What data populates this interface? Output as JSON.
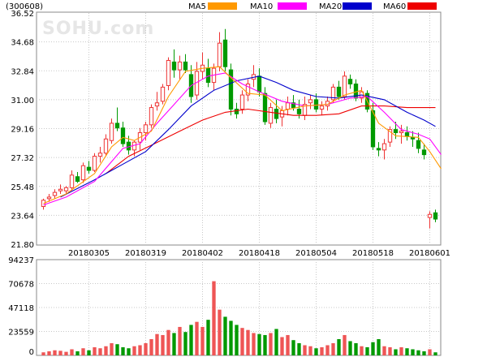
{
  "header": {
    "code": "(300608)",
    "legend": [
      {
        "label": "MA5",
        "color": "#ff9900"
      },
      {
        "label": "MA10",
        "color": "#ff00ff"
      },
      {
        "label": "MA20",
        "color": "#0000cc"
      },
      {
        "label": "MA60",
        "color": "#ee0000"
      }
    ]
  },
  "watermark": "SOHU.com",
  "chart_data": {
    "type": "candlestick",
    "grid": true,
    "price_axis": {
      "ylim": [
        21.8,
        36.52
      ],
      "ticks": [
        {
          "label": "36.52",
          "value": 36.52
        },
        {
          "label": "34.68",
          "value": 34.68
        },
        {
          "label": "32.84",
          "value": 32.84
        },
        {
          "label": "31.00",
          "value": 31.0
        },
        {
          "label": "29.16",
          "value": 29.16
        },
        {
          "label": "27.32",
          "value": 27.32
        },
        {
          "label": "25.48",
          "value": 25.48
        },
        {
          "label": "23.64",
          "value": 23.64
        },
        {
          "label": "21.80",
          "value": 21.8
        }
      ]
    },
    "volume_axis": {
      "ylim": [
        0,
        94237
      ],
      "ticks": [
        {
          "label": "94237",
          "value": 94237
        },
        {
          "label": "70678",
          "value": 70678
        },
        {
          "label": "47118",
          "value": 47118
        },
        {
          "label": "23559",
          "value": 23559
        },
        {
          "label": "0",
          "value": 0
        }
      ]
    },
    "date_labels": [
      {
        "label": "20180305",
        "index": 8
      },
      {
        "label": "20180319",
        "index": 18
      },
      {
        "label": "20180402",
        "index": 28
      },
      {
        "label": "20180418",
        "index": 38
      },
      {
        "label": "20180504",
        "index": 48
      },
      {
        "label": "20180518",
        "index": 58
      },
      {
        "label": "20180601",
        "index": 68
      }
    ],
    "ohlc": [
      [
        24.2,
        24.7,
        24.0,
        24.6
      ],
      [
        24.7,
        25.0,
        24.5,
        24.8
      ],
      [
        24.9,
        25.3,
        24.7,
        25.1
      ],
      [
        25.2,
        25.6,
        25.0,
        25.3
      ],
      [
        25.2,
        25.5,
        25.0,
        25.4
      ],
      [
        25.4,
        26.5,
        25.2,
        26.2
      ],
      [
        26.1,
        26.4,
        25.7,
        25.8
      ],
      [
        25.9,
        27.0,
        25.7,
        26.8
      ],
      [
        26.7,
        27.1,
        26.3,
        26.5
      ],
      [
        26.5,
        27.6,
        26.4,
        27.4
      ],
      [
        27.4,
        28.0,
        27.0,
        27.6
      ],
      [
        27.6,
        28.8,
        27.4,
        28.5
      ],
      [
        28.4,
        29.8,
        28.2,
        29.5
      ],
      [
        29.5,
        30.5,
        29.0,
        29.2
      ],
      [
        29.2,
        29.6,
        28.0,
        28.2
      ],
      [
        28.3,
        28.7,
        27.5,
        27.8
      ],
      [
        27.8,
        28.4,
        27.4,
        28.3
      ],
      [
        28.3,
        29.2,
        27.8,
        28.9
      ],
      [
        28.9,
        29.6,
        28.4,
        29.4
      ],
      [
        29.4,
        30.7,
        29.2,
        30.5
      ],
      [
        30.6,
        31.5,
        30.3,
        30.8
      ],
      [
        30.9,
        32.0,
        30.7,
        31.8
      ],
      [
        31.9,
        33.7,
        31.6,
        33.5
      ],
      [
        33.4,
        34.2,
        32.4,
        32.9
      ],
      [
        32.9,
        33.8,
        32.3,
        33.4
      ],
      [
        33.4,
        33.9,
        32.7,
        32.9
      ],
      [
        32.6,
        33.2,
        30.8,
        31.2
      ],
      [
        31.3,
        33.4,
        31.0,
        32.8
      ],
      [
        32.8,
        34.0,
        32.3,
        33.2
      ],
      [
        33.0,
        33.6,
        31.8,
        32.1
      ],
      [
        32.1,
        33.3,
        31.6,
        33.0
      ],
      [
        33.1,
        35.3,
        32.8,
        34.6
      ],
      [
        34.8,
        35.5,
        32.8,
        33.1
      ],
      [
        32.9,
        33.3,
        30.0,
        30.4
      ],
      [
        30.4,
        30.8,
        29.8,
        30.1
      ],
      [
        30.4,
        31.6,
        30.1,
        31.3
      ],
      [
        31.3,
        32.3,
        30.9,
        32.0
      ],
      [
        32.3,
        33.2,
        31.8,
        32.6
      ],
      [
        32.5,
        33.0,
        31.2,
        31.5
      ],
      [
        31.4,
        31.8,
        29.4,
        29.6
      ],
      [
        29.5,
        30.8,
        29.2,
        30.5
      ],
      [
        30.4,
        31.0,
        29.5,
        29.8
      ],
      [
        29.9,
        30.6,
        29.3,
        30.3
      ],
      [
        30.4,
        31.2,
        30.0,
        30.8
      ],
      [
        30.8,
        31.3,
        30.3,
        30.5
      ],
      [
        30.4,
        31.0,
        29.8,
        30.1
      ],
      [
        30.0,
        31.2,
        29.7,
        30.7
      ],
      [
        30.8,
        31.3,
        30.4,
        31.0
      ],
      [
        31.0,
        31.4,
        30.2,
        30.4
      ],
      [
        30.4,
        30.9,
        30.0,
        30.6
      ],
      [
        30.6,
        31.2,
        30.3,
        30.9
      ],
      [
        31.0,
        32.0,
        30.8,
        31.8
      ],
      [
        31.8,
        32.2,
        31.0,
        31.2
      ],
      [
        31.2,
        32.8,
        31.0,
        32.5
      ],
      [
        32.3,
        32.6,
        31.7,
        32.0
      ],
      [
        32.0,
        32.3,
        30.9,
        31.1
      ],
      [
        31.1,
        31.8,
        30.8,
        31.5
      ],
      [
        31.4,
        31.6,
        30.2,
        30.4
      ],
      [
        30.3,
        30.8,
        27.8,
        28.0
      ],
      [
        27.9,
        28.3,
        27.4,
        27.8
      ],
      [
        27.8,
        28.5,
        27.2,
        28.2
      ],
      [
        28.3,
        29.3,
        28.0,
        29.1
      ],
      [
        29.1,
        29.6,
        28.5,
        28.9
      ],
      [
        28.9,
        29.4,
        28.2,
        29.0
      ],
      [
        28.9,
        29.3,
        28.4,
        28.7
      ],
      [
        28.6,
        29.0,
        28.0,
        28.5
      ],
      [
        28.4,
        28.9,
        27.6,
        27.9
      ],
      [
        27.8,
        28.2,
        27.2,
        27.5
      ],
      [
        23.5,
        23.9,
        22.8,
        23.7
      ],
      [
        23.8,
        24.0,
        23.2,
        23.4
      ]
    ],
    "volume": [
      3000,
      4000,
      5000,
      4500,
      3500,
      6000,
      4000,
      7000,
      5000,
      8000,
      7000,
      9000,
      12000,
      11000,
      8000,
      7000,
      9000,
      10000,
      12000,
      16000,
      21000,
      20000,
      25000,
      22000,
      28000,
      23000,
      30000,
      33000,
      28000,
      35000,
      73000,
      45000,
      38000,
      34000,
      30000,
      27000,
      25000,
      22000,
      21000,
      20000,
      22000,
      26000,
      18000,
      20000,
      15000,
      12000,
      10000,
      9000,
      7000,
      8000,
      10000,
      12000,
      16000,
      20000,
      14000,
      12000,
      9000,
      8000,
      13000,
      16000,
      9000,
      8000,
      6000,
      8000,
      7000,
      6000,
      5000,
      4000,
      6000,
      3000
    ],
    "ma5": [
      [
        0,
        24.4
      ],
      [
        4,
        25.0
      ],
      [
        9,
        26.3
      ],
      [
        12,
        28.0
      ],
      [
        14,
        28.6
      ],
      [
        16,
        28.4
      ],
      [
        19,
        29.0
      ],
      [
        22,
        31.2
      ],
      [
        25,
        32.8
      ],
      [
        28,
        33.0
      ],
      [
        31,
        33.1
      ],
      [
        33,
        32.4
      ],
      [
        36,
        31.4
      ],
      [
        39,
        31.3
      ],
      [
        42,
        30.3
      ],
      [
        46,
        30.6
      ],
      [
        50,
        30.7
      ],
      [
        53,
        31.3
      ],
      [
        56,
        31.6
      ],
      [
        59,
        29.5
      ],
      [
        62,
        28.7
      ],
      [
        66,
        28.6
      ],
      [
        68,
        27.7
      ],
      [
        70,
        26.6
      ]
    ],
    "ma10": [
      [
        0,
        24.3
      ],
      [
        4,
        24.8
      ],
      [
        9,
        25.8
      ],
      [
        14,
        27.9
      ],
      [
        17,
        28.2
      ],
      [
        20,
        29.5
      ],
      [
        23,
        30.7
      ],
      [
        26,
        31.9
      ],
      [
        29,
        32.5
      ],
      [
        32,
        32.7
      ],
      [
        35,
        32.0
      ],
      [
        38,
        31.5
      ],
      [
        42,
        30.9
      ],
      [
        46,
        30.6
      ],
      [
        50,
        30.7
      ],
      [
        54,
        31.1
      ],
      [
        57,
        31.2
      ],
      [
        60,
        30.2
      ],
      [
        63,
        29.1
      ],
      [
        66,
        28.8
      ],
      [
        68,
        28.5
      ],
      [
        70,
        27.5
      ]
    ],
    "ma20": [
      [
        3,
        24.8
      ],
      [
        9,
        25.9
      ],
      [
        14,
        26.9
      ],
      [
        18,
        27.7
      ],
      [
        22,
        29.1
      ],
      [
        26,
        30.6
      ],
      [
        30,
        31.6
      ],
      [
        34,
        32.2
      ],
      [
        38,
        32.5
      ],
      [
        41,
        32.1
      ],
      [
        44,
        31.6
      ],
      [
        48,
        31.2
      ],
      [
        52,
        31.1
      ],
      [
        56,
        31.3
      ],
      [
        60,
        31.0
      ],
      [
        64,
        30.2
      ],
      [
        67,
        29.7
      ],
      [
        69,
        29.3
      ]
    ],
    "ma60": [
      [
        11,
        26.3
      ],
      [
        15,
        27.4
      ],
      [
        19,
        28.1
      ],
      [
        24,
        29.0
      ],
      [
        28,
        29.7
      ],
      [
        32,
        30.2
      ],
      [
        36,
        30.4
      ],
      [
        40,
        30.2
      ],
      [
        44,
        30.0
      ],
      [
        48,
        30.0
      ],
      [
        52,
        30.1
      ],
      [
        56,
        30.6
      ],
      [
        60,
        30.6
      ],
      [
        64,
        30.5
      ],
      [
        69,
        30.5
      ]
    ]
  }
}
